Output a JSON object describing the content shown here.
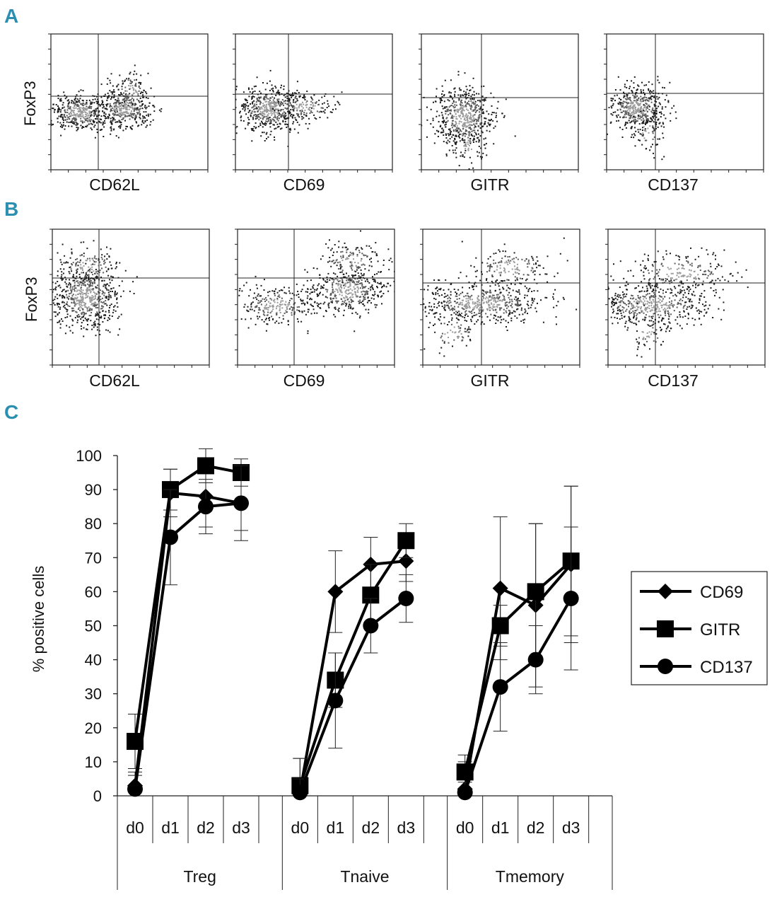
{
  "panels": {
    "a_letter": "A",
    "b_letter": "B",
    "c_letter": "C"
  },
  "flow": {
    "ylabel": "FoxP3",
    "row_a": [
      "CD62L",
      "CD69",
      "GITR",
      "CD137"
    ],
    "row_b": [
      "CD62L",
      "CD69",
      "GITR",
      "CD137"
    ]
  },
  "colors": {
    "letter": "#2a8fb0",
    "ink": "#111111"
  },
  "chart_data": {
    "type": "line",
    "ylabel": "% positive cells",
    "ylim": [
      0,
      100
    ],
    "yticks": [
      0,
      10,
      20,
      30,
      40,
      50,
      60,
      70,
      80,
      90,
      100
    ],
    "days": [
      "d0",
      "d1",
      "d2",
      "d3"
    ],
    "groups": [
      "Treg",
      "Tnaive",
      "Tmemory"
    ],
    "legend_position": "right",
    "series": [
      {
        "name": "CD69",
        "marker": "diamond",
        "values": [
          [
            3,
            89,
            88,
            86
          ],
          [
            1,
            60,
            68,
            69
          ],
          [
            2,
            61,
            56,
            68
          ]
        ],
        "errors": [
          [
            4,
            7,
            9,
            8
          ],
          [
            10,
            12,
            8,
            6
          ],
          [
            8,
            21,
            24,
            23
          ]
        ]
      },
      {
        "name": "GITR",
        "marker": "square",
        "values": [
          [
            16,
            90,
            97,
            95
          ],
          [
            3,
            34,
            59,
            75
          ],
          [
            7,
            50,
            60,
            69
          ]
        ],
        "errors": [
          [
            8,
            6,
            5,
            4
          ],
          [
            8,
            8,
            9,
            5
          ],
          [
            5,
            6,
            20,
            22
          ]
        ]
      },
      {
        "name": "CD137",
        "marker": "circle",
        "values": [
          [
            2,
            76,
            85,
            86
          ],
          [
            1,
            28,
            50,
            58
          ],
          [
            1,
            32,
            40,
            58
          ]
        ],
        "errors": [
          [
            4,
            14,
            8,
            11
          ],
          [
            4,
            14,
            8,
            7
          ],
          [
            3,
            13,
            10,
            21
          ]
        ]
      }
    ]
  }
}
